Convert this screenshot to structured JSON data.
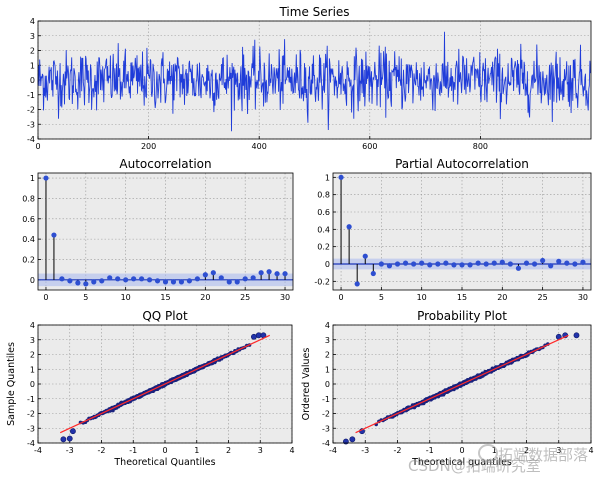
{
  "chart_data": [
    {
      "id": "time-series",
      "type": "line",
      "title": "Time Series",
      "xlabel": "",
      "ylabel": "",
      "xlim": [
        0,
        1000
      ],
      "ylim": [
        -4,
        4
      ],
      "xticks": [
        0,
        200,
        400,
        600,
        800
      ],
      "yticks": [
        -4,
        -3,
        -2,
        -1,
        0,
        1,
        2,
        3,
        4
      ],
      "grid": true,
      "color": "#1f3cd9",
      "n_points": 1000,
      "stats": {
        "mean": 0.0,
        "std": 1.0,
        "min": -3.9,
        "max": 3.6
      }
    },
    {
      "id": "autocorrelation",
      "type": "bar",
      "title": "Autocorrelation",
      "xlabel": "",
      "ylabel": "",
      "xlim": [
        -1,
        31
      ],
      "ylim": [
        -0.1,
        1.05
      ],
      "xticks": [
        0,
        5,
        10,
        15,
        20,
        25,
        30
      ],
      "yticks": [
        0.0,
        0.2,
        0.4,
        0.6,
        0.8,
        1.0
      ],
      "grid": true,
      "lags": [
        0,
        1,
        2,
        3,
        4,
        5,
        6,
        7,
        8,
        9,
        10,
        11,
        12,
        13,
        14,
        15,
        16,
        17,
        18,
        19,
        20,
        21,
        22,
        23,
        24,
        25,
        26,
        27,
        28,
        29,
        30
      ],
      "values": [
        1.0,
        0.44,
        0.01,
        -0.01,
        -0.03,
        -0.04,
        -0.02,
        -0.01,
        0.02,
        0.01,
        0.0,
        0.01,
        0.01,
        0.0,
        -0.01,
        -0.02,
        -0.02,
        -0.02,
        -0.01,
        0.01,
        0.05,
        0.07,
        0.02,
        -0.02,
        -0.02,
        0.01,
        0.02,
        0.07,
        0.08,
        0.06,
        0.06
      ],
      "conf_band": 0.062,
      "color": "#2e4fd1"
    },
    {
      "id": "partial-autocorrelation",
      "type": "bar",
      "title": "Partial Autocorrelation",
      "xlabel": "",
      "ylabel": "",
      "xlim": [
        -1,
        31
      ],
      "ylim": [
        -0.3,
        1.05
      ],
      "xticks": [
        0,
        5,
        10,
        15,
        20,
        25,
        30
      ],
      "yticks": [
        -0.2,
        0.0,
        0.2,
        0.4,
        0.6,
        0.8,
        1.0
      ],
      "grid": true,
      "lags": [
        0,
        1,
        2,
        3,
        4,
        5,
        6,
        7,
        8,
        9,
        10,
        11,
        12,
        13,
        14,
        15,
        16,
        17,
        18,
        19,
        20,
        21,
        22,
        23,
        24,
        25,
        26,
        27,
        28,
        29,
        30
      ],
      "values": [
        1.0,
        0.43,
        -0.23,
        0.09,
        -0.11,
        0.0,
        -0.02,
        0.0,
        0.01,
        0.0,
        0.01,
        -0.01,
        0.0,
        0.01,
        -0.01,
        -0.01,
        -0.01,
        0.01,
        0.0,
        0.01,
        0.02,
        0.0,
        -0.05,
        0.01,
        0.0,
        0.04,
        -0.02,
        0.03,
        0.01,
        0.0,
        0.02
      ],
      "conf_band": 0.062,
      "color": "#2e4fd1"
    },
    {
      "id": "qq-plot",
      "type": "scatter",
      "title": "QQ Plot",
      "xlabel": "Theoretical Quantiles",
      "ylabel": "Sample Quantiles",
      "xlim": [
        -4,
        4
      ],
      "ylim": [
        -4,
        4
      ],
      "xticks": [
        -4,
        -3,
        -2,
        -1,
        0,
        1,
        2,
        3,
        4
      ],
      "yticks": [
        -4,
        -3,
        -2,
        -1,
        0,
        1,
        2,
        3,
        4
      ],
      "grid": true,
      "reference_line": {
        "slope": 1.0,
        "intercept": 0.0,
        "color": "#ff2a2a"
      },
      "tail_points": [
        [
          -3.2,
          -3.75
        ],
        [
          -3.0,
          -3.7
        ],
        [
          -2.9,
          -3.2
        ],
        [
          2.8,
          3.2
        ],
        [
          2.95,
          3.3
        ],
        [
          3.1,
          3.3
        ]
      ],
      "marker_color": "#1a237e"
    },
    {
      "id": "probability-plot",
      "type": "scatter",
      "title": "Probability Plot",
      "xlabel": "Theoretical quantiles",
      "ylabel": "Ordered Values",
      "xlim": [
        -4,
        4
      ],
      "ylim": [
        -4,
        4
      ],
      "xticks": [
        -4,
        -3,
        -2,
        -1,
        0,
        1,
        2,
        3,
        4
      ],
      "yticks": [
        -4,
        -3,
        -2,
        -1,
        0,
        1,
        2,
        3,
        4
      ],
      "grid": true,
      "reference_line": {
        "slope": 1.0,
        "intercept": 0.0,
        "color": "#ff2a2a"
      },
      "tail_points": [
        [
          -3.6,
          -3.9
        ],
        [
          -3.4,
          -3.75
        ],
        [
          -3.1,
          -3.2
        ],
        [
          3.0,
          3.2
        ],
        [
          3.2,
          3.3
        ],
        [
          3.55,
          3.3
        ]
      ],
      "marker_color": "#1a237e"
    }
  ],
  "watermark": {
    "line1": "拓端数据部落",
    "line2": "CSDN@拓端研究室"
  }
}
